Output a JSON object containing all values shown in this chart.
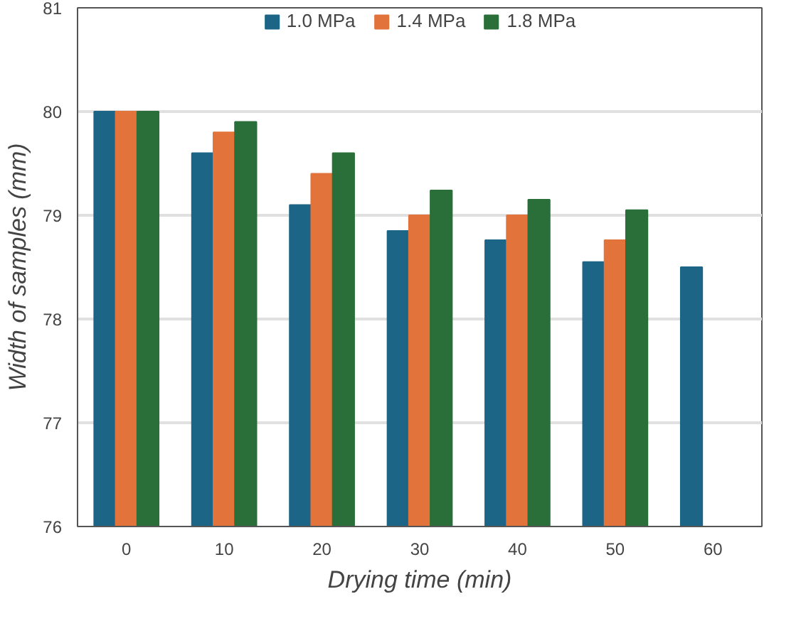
{
  "chart_data": {
    "type": "bar",
    "xlabel": "Drying time (min)",
    "ylabel": "Width of samples (mm)",
    "categories": [
      "0",
      "10",
      "20",
      "30",
      "40",
      "50",
      "60"
    ],
    "series": [
      {
        "name": "1.0 MPa",
        "color": "#1d6587",
        "values": [
          80,
          79.6,
          79.1,
          78.85,
          78.76,
          78.55,
          78.5
        ]
      },
      {
        "name": "1.4 MPa",
        "color": "#e2733a",
        "values": [
          80,
          79.8,
          79.4,
          79.0,
          79.0,
          78.76,
          null
        ]
      },
      {
        "name": "1.8 MPa",
        "color": "#2a6f39",
        "values": [
          80,
          79.9,
          79.6,
          79.24,
          79.15,
          79.05,
          null
        ]
      }
    ],
    "ylim": [
      76,
      81
    ],
    "yticks": [
      76,
      77,
      78,
      79,
      80,
      81
    ],
    "grid": "y",
    "legend": "top"
  }
}
